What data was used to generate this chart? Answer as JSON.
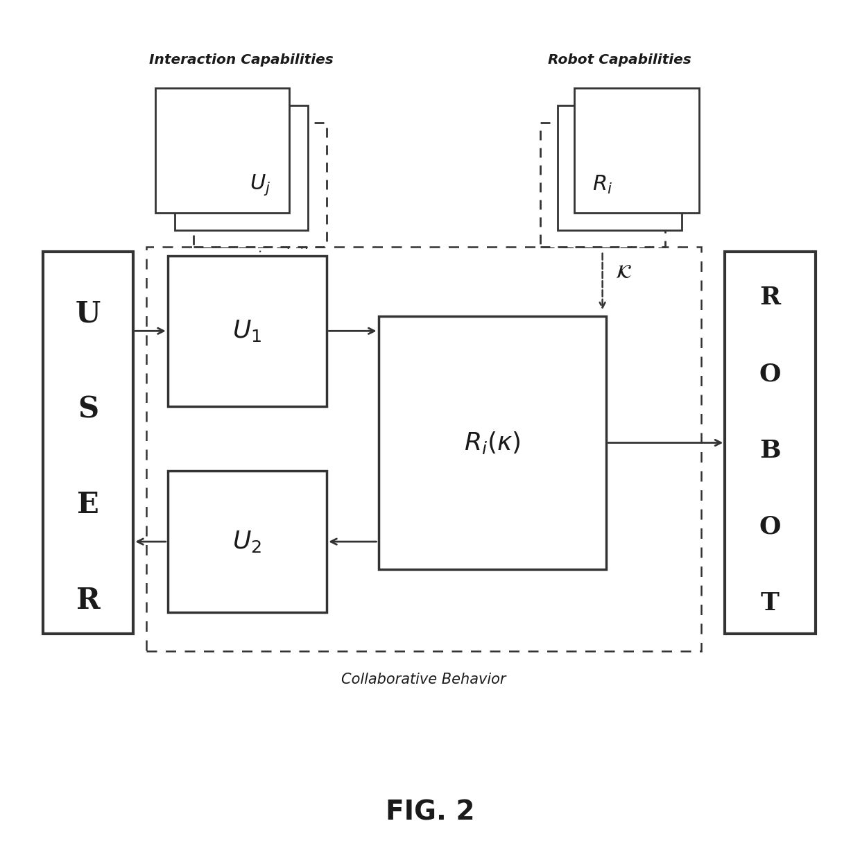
{
  "bg_color": "#ffffff",
  "fig_label": "FIG. 2",
  "interaction_cap_label": "Interaction Capabilities",
  "robot_cap_label": "Robot Capabilities",
  "collab_behavior_label": "Collaborative Behavior",
  "user_letters": [
    "U",
    "S",
    "E",
    "R"
  ],
  "robot_letters": [
    "R",
    "O",
    "B",
    "O",
    "T"
  ],
  "line_color": "#333333",
  "text_color": "#1a1a1a",
  "lw_thick": 3.0,
  "lw_med": 2.2,
  "lw_thin": 1.8
}
